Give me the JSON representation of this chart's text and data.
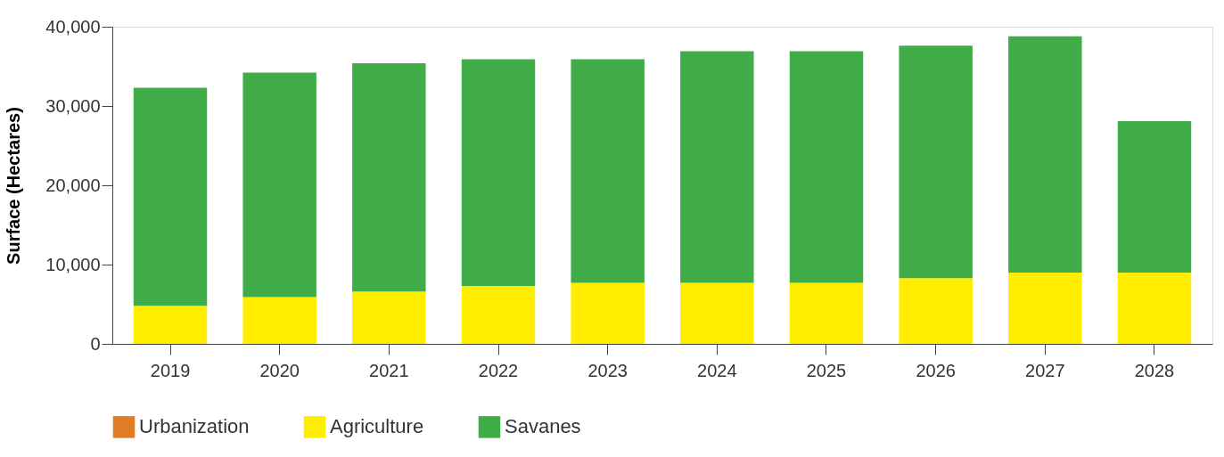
{
  "chart_data": {
    "type": "bar",
    "stacked": true,
    "ylabel": "Surface (Hectares)",
    "categories": [
      "2019",
      "2020",
      "2021",
      "2022",
      "2023",
      "2024",
      "2025",
      "2026",
      "2027",
      "2028"
    ],
    "series": [
      {
        "name": "Urbanization",
        "color": "#e07b28",
        "values": [
          0,
          0,
          0,
          0,
          0,
          0,
          0,
          0,
          0,
          0
        ]
      },
      {
        "name": "Agriculture",
        "color": "#ffed00",
        "values": [
          4800,
          5900,
          6600,
          7300,
          7700,
          7700,
          7700,
          8300,
          9000,
          9000
        ]
      },
      {
        "name": "Savanes",
        "color": "#41ad49",
        "values": [
          27500,
          28300,
          28800,
          28600,
          28200,
          29200,
          29200,
          29300,
          29800,
          19100
        ]
      }
    ],
    "ylim": [
      0,
      40000
    ],
    "yticks": [
      0,
      {
        "value": 10000,
        "label": "10,000"
      },
      {
        "value": 20000,
        "label": "20,000"
      },
      {
        "value": 30000,
        "label": "30,000"
      },
      {
        "value": 40000,
        "label": "40,000"
      }
    ],
    "grid": false,
    "legend": "bottom"
  }
}
